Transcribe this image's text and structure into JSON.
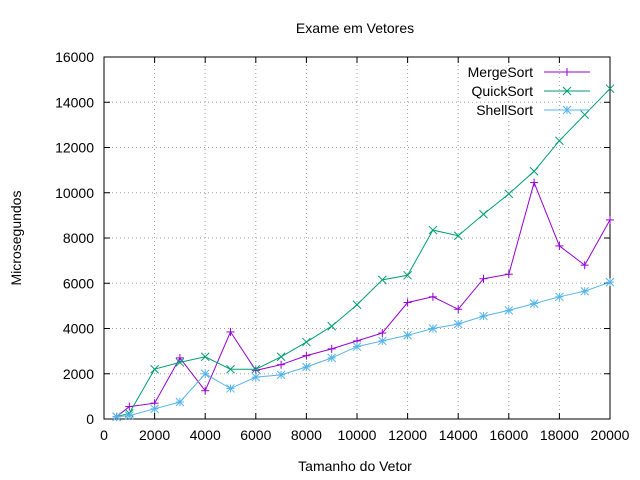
{
  "chart_data": {
    "type": "line",
    "title": "Exame em Vetores",
    "xlabel": "Tamanho do Vetor",
    "ylabel": "Microsegundos",
    "xlim": [
      0,
      20000
    ],
    "ylim": [
      0,
      16000
    ],
    "xticks": [
      0,
      2000,
      4000,
      6000,
      8000,
      10000,
      12000,
      14000,
      16000,
      18000,
      20000
    ],
    "yticks": [
      0,
      2000,
      4000,
      6000,
      8000,
      10000,
      12000,
      14000,
      16000
    ],
    "grid": true,
    "legend_position": "top-right",
    "x": [
      500,
      1000,
      2000,
      3000,
      4000,
      5000,
      6000,
      7000,
      8000,
      9000,
      10000,
      11000,
      12000,
      13000,
      14000,
      15000,
      16000,
      17000,
      18000,
      19000,
      20000
    ],
    "series": [
      {
        "name": "MergeSort",
        "color": "#9400d3",
        "marker": "plus",
        "values": [
          100,
          550,
          700,
          2700,
          1250,
          3850,
          2150,
          2400,
          2800,
          3100,
          3450,
          3800,
          5150,
          5400,
          4850,
          6200,
          6400,
          10450,
          7650,
          6800,
          8800
        ]
      },
      {
        "name": "QuickSort",
        "color": "#009e73",
        "marker": "cross",
        "values": [
          100,
          250,
          2200,
          2500,
          2750,
          2200,
          2200,
          2750,
          3400,
          4100,
          5050,
          6150,
          6350,
          8350,
          8100,
          9050,
          9950,
          10950,
          12300,
          13450,
          14600
        ]
      },
      {
        "name": "ShellSort",
        "color": "#56b4e9",
        "marker": "star",
        "values": [
          100,
          150,
          450,
          750,
          2000,
          1350,
          1850,
          1950,
          2300,
          2700,
          3200,
          3450,
          3700,
          4000,
          4200,
          4550,
          4800,
          5100,
          5400,
          5650,
          6050
        ]
      }
    ]
  }
}
